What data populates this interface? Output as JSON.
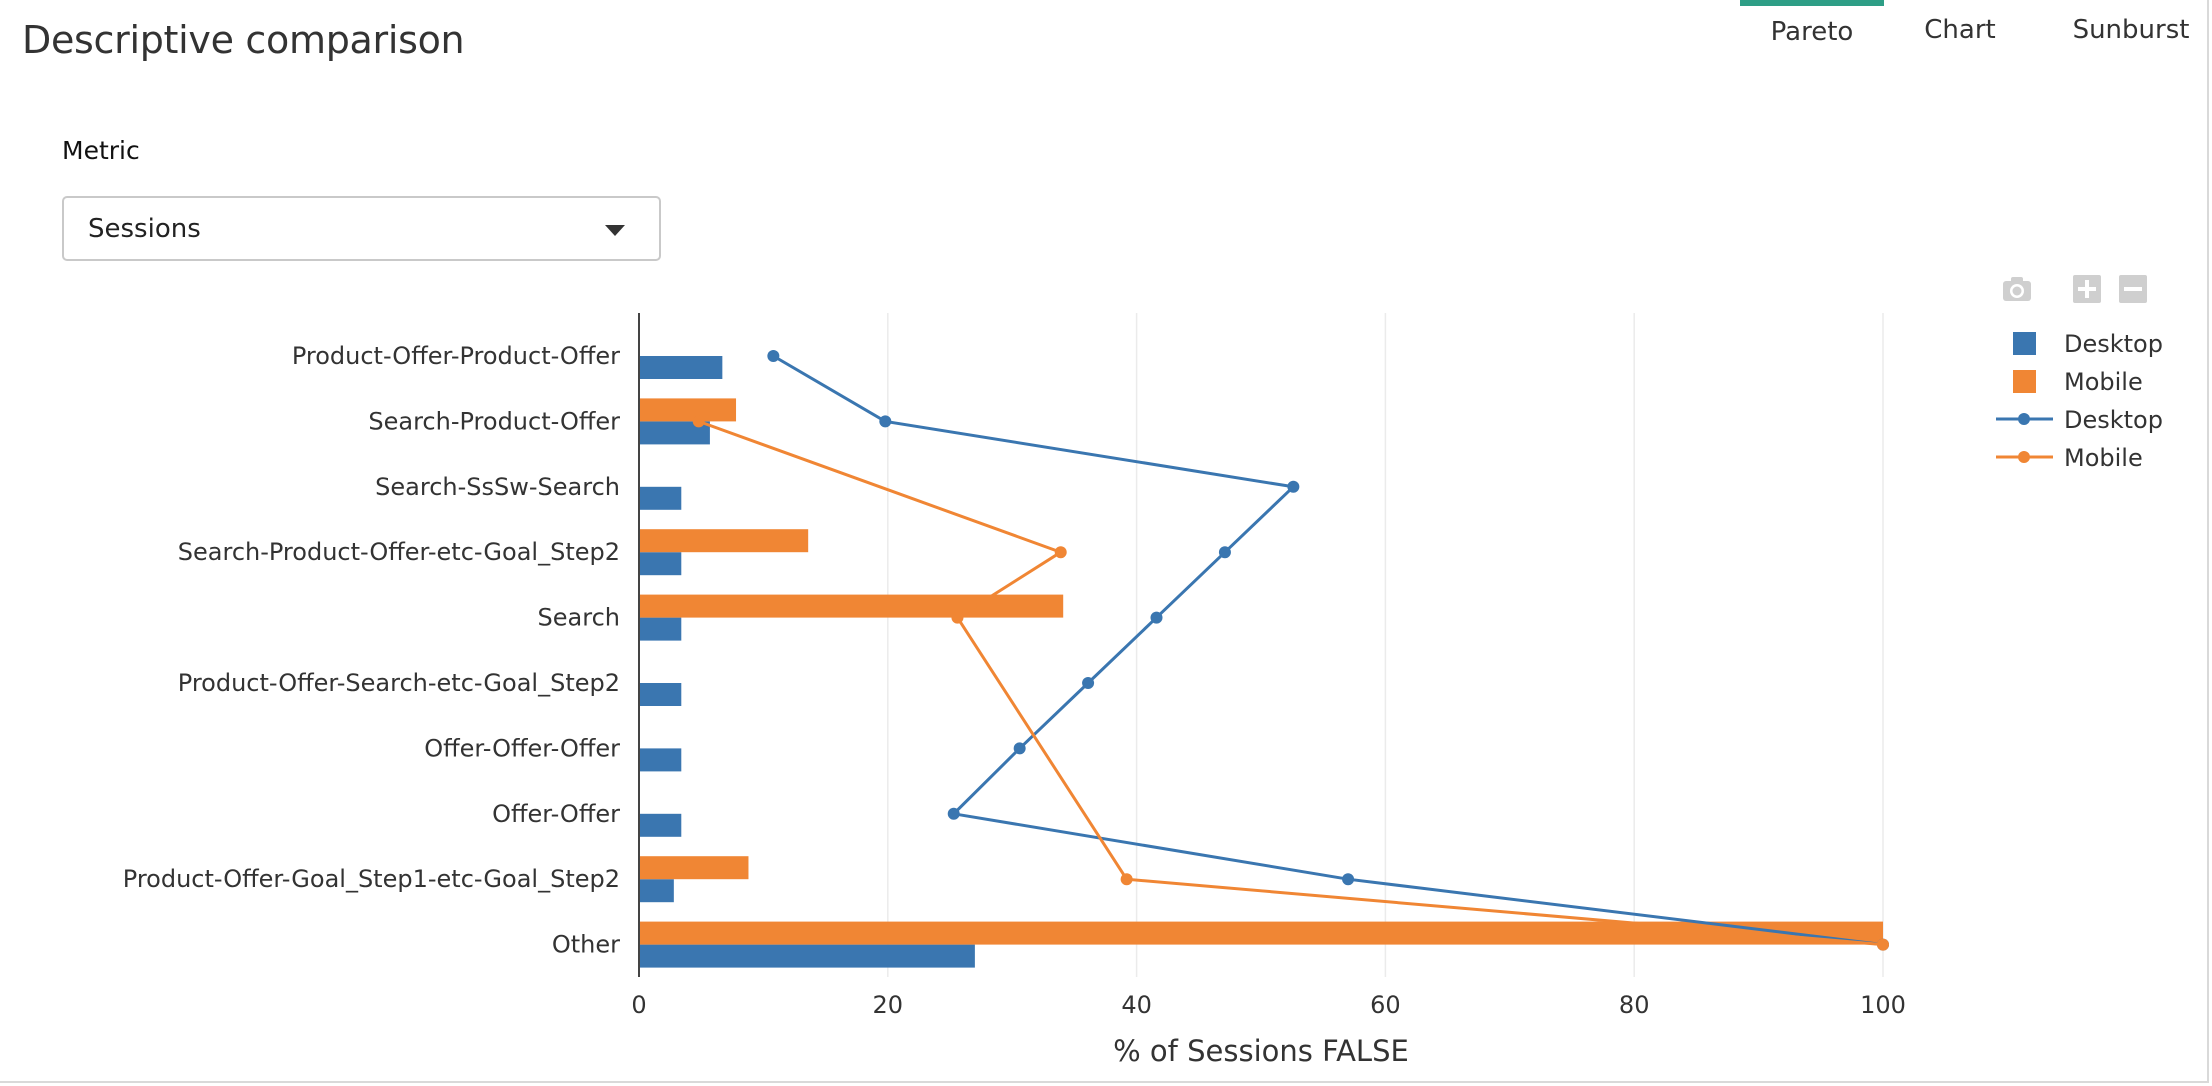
{
  "page": {
    "title": "Descriptive comparison"
  },
  "tabs": [
    {
      "label": "Pareto",
      "active": true
    },
    {
      "label": "Chart",
      "active": false
    },
    {
      "label": "Sunburst",
      "active": false
    }
  ],
  "metric": {
    "label": "Metric",
    "selected": "Sessions"
  },
  "modebar": {
    "icons": [
      "camera-icon",
      "zoom-in-icon",
      "zoom-out-icon"
    ]
  },
  "chart_data": {
    "type": "bar",
    "orientation": "horizontal",
    "categories": [
      "Product-Offer-Product-Offer",
      "Search-Product-Offer",
      "Search-SsSw-Search",
      "Search-Product-Offer-etc-Goal_Step2",
      "Search",
      "Product-Offer-Search-etc-Goal_Step2",
      "Offer-Offer-Offer",
      "Offer-Offer",
      "Product-Offer-Goal_Step1-etc-Goal_Step2",
      "Other"
    ],
    "series": [
      {
        "name": "Desktop",
        "type": "bar",
        "color": "#3a76b0",
        "values": [
          6.7,
          5.7,
          3.4,
          3.4,
          3.4,
          3.4,
          3.4,
          3.4,
          2.8,
          27
        ]
      },
      {
        "name": "Mobile",
        "type": "bar",
        "color": "#f08634",
        "values": [
          null,
          7.8,
          null,
          13.6,
          34.1,
          null,
          null,
          null,
          8.8,
          100
        ]
      },
      {
        "name": "Desktop",
        "type": "line",
        "color": "#3a76b0",
        "values": [
          10.8,
          19.8,
          52.6,
          47.1,
          41.6,
          36.1,
          30.6,
          25.3,
          57,
          100
        ]
      },
      {
        "name": "Mobile",
        "type": "line",
        "color": "#f08634",
        "values": [
          null,
          4.8,
          null,
          33.9,
          25.6,
          null,
          null,
          null,
          39.2,
          100
        ]
      }
    ],
    "xlabel": "% of Sessions FALSE",
    "ylabel": "",
    "xlim": [
      0,
      100
    ],
    "xticks": [
      0,
      20,
      40,
      60,
      80,
      100
    ],
    "grid": true,
    "legend_position": "top-right"
  }
}
